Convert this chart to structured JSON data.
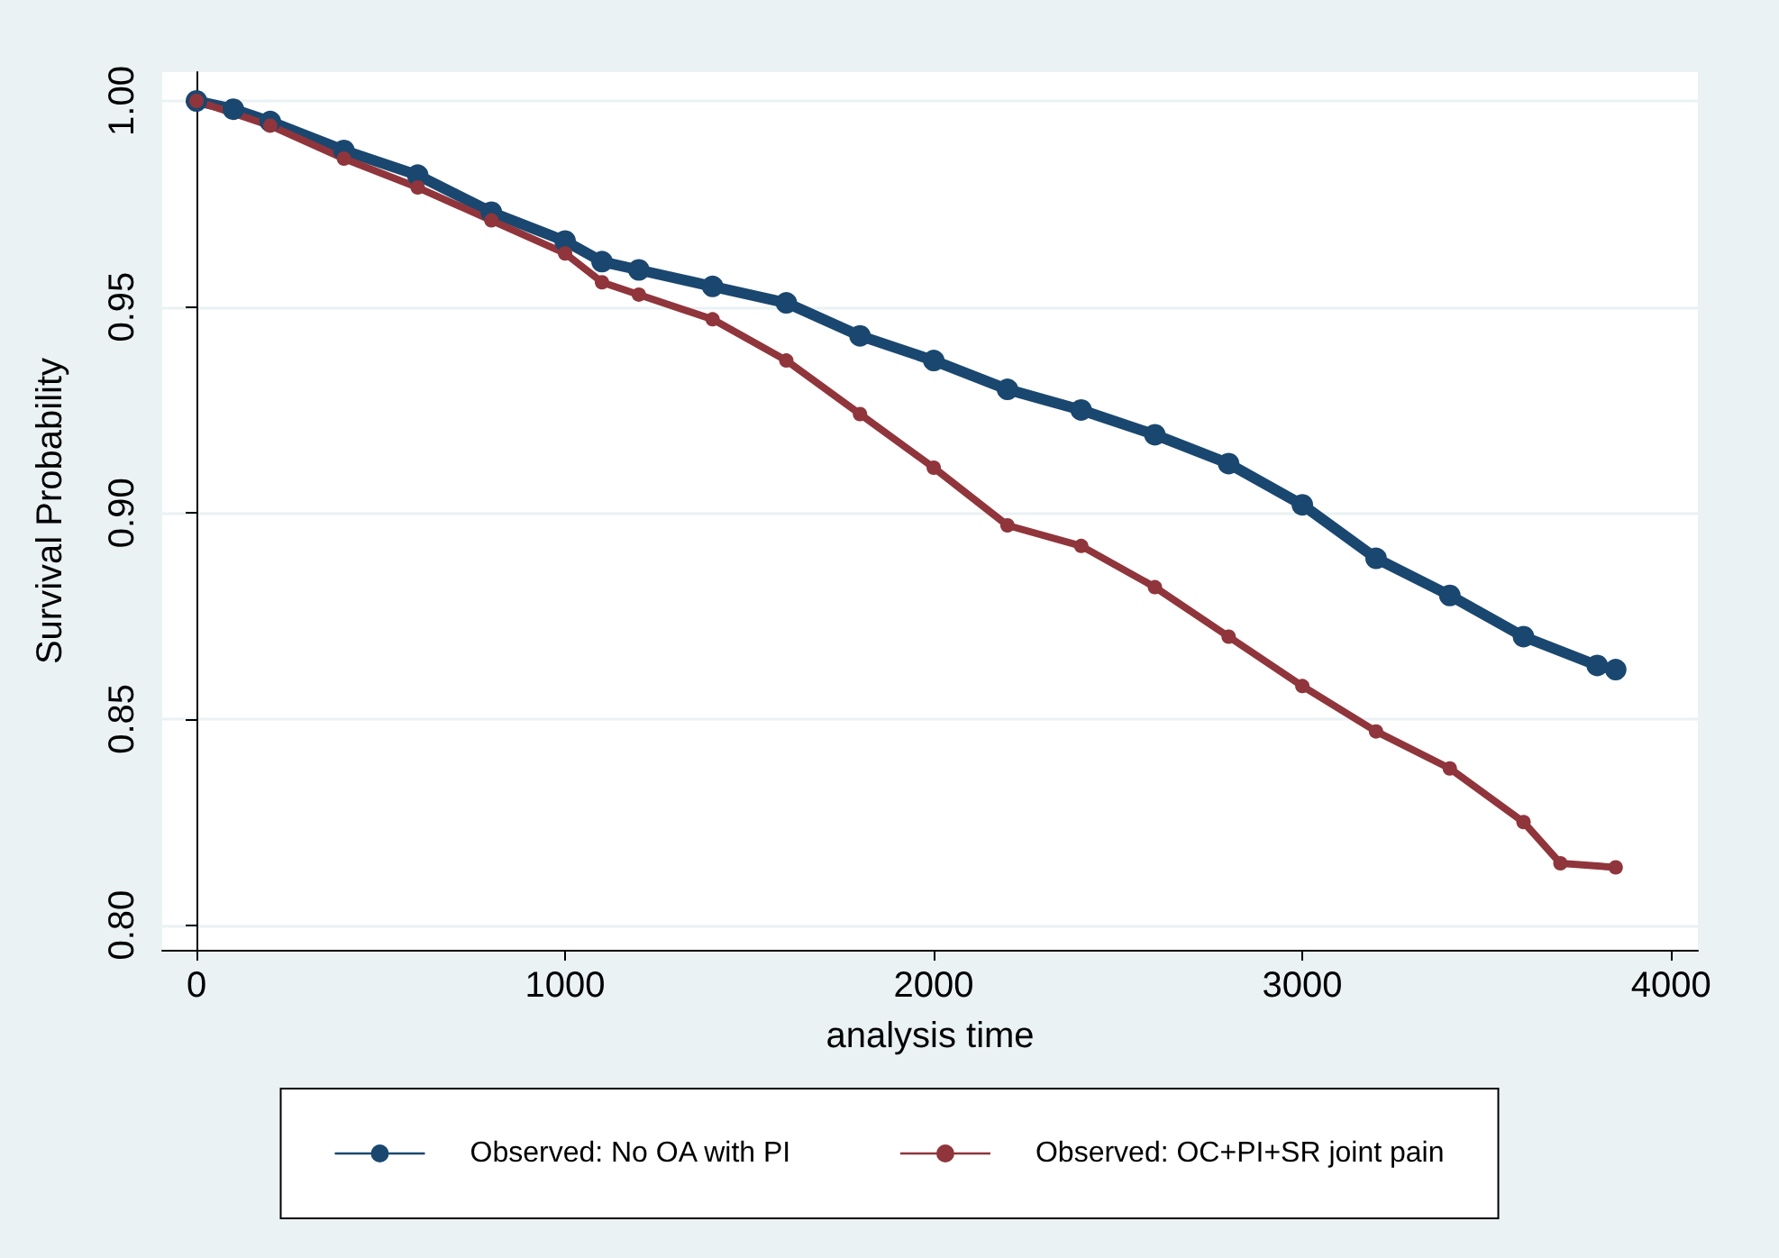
{
  "chart_data": {
    "type": "line",
    "xlabel": "analysis time",
    "ylabel": "Survival Probability",
    "xlim": [
      -93,
      4073
    ],
    "xticks": [
      0,
      1000,
      2000,
      3000,
      4000
    ],
    "ylim": [
      0.794,
      1.007
    ],
    "yticks": [
      {
        "value": 0.8,
        "label": "0.80"
      },
      {
        "value": 0.85,
        "label": "0.85"
      },
      {
        "value": 0.9,
        "label": "0.90"
      },
      {
        "value": 0.95,
        "label": "0.95"
      },
      {
        "value": 1.0,
        "label": "1.00"
      }
    ],
    "grid": "y",
    "legend": "bottom",
    "marker": "circle",
    "line_style": "solid",
    "series": [
      {
        "name": "Observed: No OA with PI",
        "color": "#1a476f",
        "x": [
          0,
          100,
          200,
          400,
          600,
          800,
          1000,
          1100,
          1200,
          1400,
          1600,
          1800,
          2000,
          2200,
          2400,
          2600,
          2800,
          3000,
          3200,
          3400,
          3600,
          3800,
          3850
        ],
        "values": [
          1.0,
          0.998,
          0.995,
          0.988,
          0.982,
          0.973,
          0.966,
          0.961,
          0.959,
          0.955,
          0.951,
          0.943,
          0.937,
          0.93,
          0.925,
          0.919,
          0.912,
          0.902,
          0.889,
          0.88,
          0.87,
          0.863,
          0.862
        ]
      },
      {
        "name": "Observed: OC+PI+SR joint pain",
        "color": "#90353b",
        "x": [
          0,
          200,
          400,
          600,
          800,
          1000,
          1100,
          1200,
          1400,
          1600,
          1800,
          2000,
          2200,
          2400,
          2600,
          2800,
          3000,
          3200,
          3400,
          3600,
          3700,
          3850
        ],
        "values": [
          1.0,
          0.994,
          0.986,
          0.979,
          0.971,
          0.963,
          0.956,
          0.953,
          0.947,
          0.937,
          0.924,
          0.911,
          0.897,
          0.892,
          0.882,
          0.87,
          0.858,
          0.847,
          0.838,
          0.825,
          0.815,
          0.814
        ]
      }
    ]
  }
}
